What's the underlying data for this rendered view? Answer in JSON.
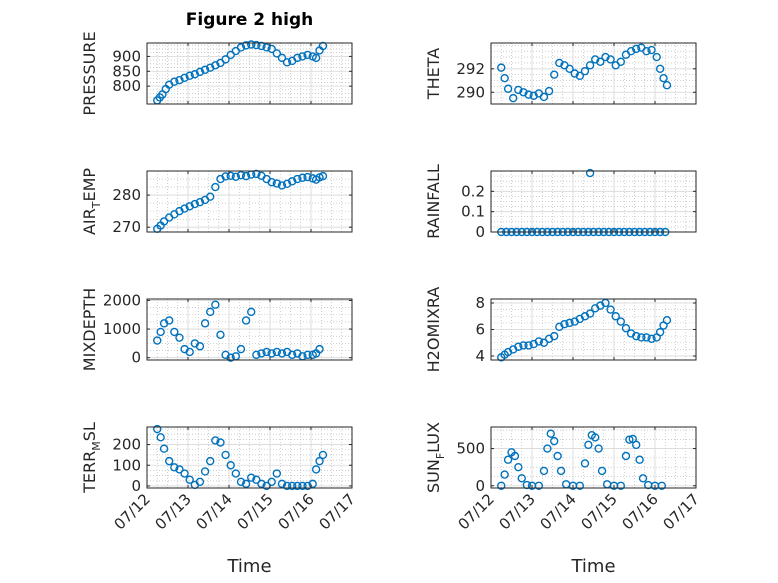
{
  "figure": {
    "title": "Figure 2 high",
    "xlabel": "Time",
    "colors": {
      "marker": "#0072BD",
      "axis": "#262626",
      "grid": "#b0b0b0"
    }
  },
  "chart_data": [
    {
      "type": "scatter",
      "name": "PRESSURE",
      "ylabel": "PRESSURE",
      "ylim": [
        740,
        945
      ],
      "yticks": [
        800,
        850,
        900
      ],
      "xlim": [
        "07/12",
        "07/17"
      ],
      "xticks": [],
      "x": [
        "07/12 06:00",
        "07/12 07:30",
        "07/12 09:00",
        "07/12 11:00",
        "07/12 13:00",
        "07/12 16:00",
        "07/12 19:00",
        "07/12 22:00",
        "07/13 01:00",
        "07/13 04:00",
        "07/13 07:00",
        "07/13 10:00",
        "07/13 13:00",
        "07/13 16:00",
        "07/13 19:00",
        "07/13 22:00",
        "07/14 01:00",
        "07/14 04:00",
        "07/14 07:00",
        "07/14 10:00",
        "07/14 13:00",
        "07/14 16:00",
        "07/14 19:00",
        "07/14 22:00",
        "07/15 01:00",
        "07/15 04:00",
        "07/15 07:00",
        "07/15 10:00",
        "07/15 13:00",
        "07/15 16:00",
        "07/15 19:00",
        "07/15 22:00",
        "07/16 01:00",
        "07/16 03:00",
        "07/16 05:00",
        "07/16 07:00"
      ],
      "y": [
        752,
        762,
        772,
        790,
        805,
        815,
        820,
        828,
        835,
        840,
        848,
        855,
        862,
        870,
        878,
        890,
        905,
        918,
        930,
        937,
        940,
        938,
        935,
        930,
        925,
        910,
        895,
        880,
        885,
        895,
        900,
        905,
        900,
        895,
        920,
        935
      ]
    },
    {
      "type": "scatter",
      "name": "THETA",
      "ylabel": "THETA",
      "ylim": [
        289,
        294.2
      ],
      "yticks": [
        290,
        292
      ],
      "xlim": [
        "07/12",
        "07/17"
      ],
      "xticks": [],
      "x": [
        "07/12 06:00",
        "07/12 08:00",
        "07/12 10:00",
        "07/12 13:00",
        "07/12 16:00",
        "07/12 19:00",
        "07/12 22:00",
        "07/13 01:00",
        "07/13 04:00",
        "07/13 07:00",
        "07/13 10:00",
        "07/13 13:00",
        "07/13 16:00",
        "07/13 19:00",
        "07/13 22:00",
        "07/14 01:00",
        "07/14 04:00",
        "07/14 07:00",
        "07/14 10:00",
        "07/14 13:00",
        "07/14 16:00",
        "07/14 19:00",
        "07/14 22:00",
        "07/15 01:00",
        "07/15 04:00",
        "07/15 07:00",
        "07/15 10:00",
        "07/15 13:00",
        "07/15 16:00",
        "07/15 19:00",
        "07/15 22:00",
        "07/16 01:00",
        "07/16 03:00",
        "07/16 05:00",
        "07/16 07:00"
      ],
      "y": [
        292.1,
        291.2,
        290.3,
        289.5,
        290.2,
        290.0,
        289.8,
        289.7,
        289.9,
        289.6,
        290.1,
        291.5,
        292.5,
        292.3,
        292.0,
        291.6,
        291.4,
        291.8,
        292.3,
        292.8,
        292.6,
        293.0,
        292.8,
        292.3,
        292.6,
        293.2,
        293.5,
        293.7,
        293.8,
        293.5,
        293.6,
        293.0,
        292.0,
        291.2,
        290.6
      ]
    },
    {
      "type": "scatter",
      "name": "AIR_TEMP",
      "ylabel": "AIR_TEMP",
      "ylim": [
        268.5,
        287.5
      ],
      "yticks": [
        270,
        280
      ],
      "xlim": [
        "07/12",
        "07/17"
      ],
      "xticks": [],
      "x": [
        "07/12 06:00",
        "07/12 08:00",
        "07/12 10:00",
        "07/12 13:00",
        "07/12 16:00",
        "07/12 19:00",
        "07/12 22:00",
        "07/13 01:00",
        "07/13 04:00",
        "07/13 07:00",
        "07/13 10:00",
        "07/13 13:00",
        "07/13 16:00",
        "07/13 19:00",
        "07/13 22:00",
        "07/14 01:00",
        "07/14 04:00",
        "07/14 07:00",
        "07/14 10:00",
        "07/14 13:00",
        "07/14 16:00",
        "07/14 19:00",
        "07/14 22:00",
        "07/15 01:00",
        "07/15 04:00",
        "07/15 07:00",
        "07/15 10:00",
        "07/15 13:00",
        "07/15 16:00",
        "07/15 19:00",
        "07/15 22:00",
        "07/16 01:00",
        "07/16 03:00",
        "07/16 05:00",
        "07/16 07:00"
      ],
      "y": [
        269.5,
        270.5,
        271.8,
        273.0,
        274.0,
        275.0,
        275.8,
        276.5,
        277.2,
        277.8,
        278.5,
        279.5,
        282.5,
        285.0,
        285.8,
        286.0,
        285.7,
        286.2,
        285.9,
        286.4,
        286.6,
        286.0,
        285.0,
        284.0,
        283.6,
        283.0,
        283.5,
        284.3,
        285.0,
        285.4,
        285.6,
        285.2,
        284.8,
        285.5,
        285.9
      ]
    },
    {
      "type": "scatter",
      "name": "RAINFALL",
      "ylabel": "RAINFALL",
      "ylim": [
        0,
        0.3
      ],
      "yticks": [
        0,
        0.1,
        0.2
      ],
      "ytick_labels": [
        "0",
        "0.1",
        "0.2"
      ],
      "xlim": [
        "07/12",
        "07/17"
      ],
      "xticks": [],
      "x": [
        "07/12 06:00",
        "07/12 09:00",
        "07/12 12:00",
        "07/12 15:00",
        "07/12 18:00",
        "07/12 21:00",
        "07/13 00:00",
        "07/13 03:00",
        "07/13 06:00",
        "07/13 09:00",
        "07/13 12:00",
        "07/13 15:00",
        "07/13 18:00",
        "07/13 21:00",
        "07/14 00:00",
        "07/14 03:00",
        "07/14 06:00",
        "07/14 09:00",
        "07/14 10:00",
        "07/14 12:00",
        "07/14 15:00",
        "07/14 18:00",
        "07/14 21:00",
        "07/15 00:00",
        "07/15 03:00",
        "07/15 06:00",
        "07/15 09:00",
        "07/15 12:00",
        "07/15 15:00",
        "07/15 18:00",
        "07/15 21:00",
        "07/16 00:00",
        "07/16 03:00",
        "07/16 06:00"
      ],
      "y": [
        0,
        0,
        0,
        0,
        0,
        0,
        0,
        0,
        0,
        0,
        0,
        0,
        0,
        0,
        0,
        0,
        0,
        0,
        0.29,
        0,
        0,
        0,
        0,
        0,
        0,
        0,
        0,
        0,
        0,
        0,
        0,
        0,
        0,
        0
      ]
    },
    {
      "type": "scatter",
      "name": "MIXDEPTH",
      "ylabel": "MIXDEPTH",
      "ylim": [
        -80,
        2050
      ],
      "yticks": [
        0,
        1000,
        2000
      ],
      "xlim": [
        "07/12",
        "07/17"
      ],
      "xticks": [],
      "x": [
        "07/12 06:00",
        "07/12 08:00",
        "07/12 10:00",
        "07/12 13:00",
        "07/12 16:00",
        "07/12 19:00",
        "07/12 22:00",
        "07/13 01:00",
        "07/13 04:00",
        "07/13 07:00",
        "07/13 10:00",
        "07/13 13:00",
        "07/13 16:00",
        "07/13 19:00",
        "07/13 22:00",
        "07/14 01:00",
        "07/14 04:00",
        "07/14 07:00",
        "07/14 10:00",
        "07/14 13:00",
        "07/14 16:00",
        "07/14 19:00",
        "07/14 22:00",
        "07/15 01:00",
        "07/15 04:00",
        "07/15 07:00",
        "07/15 10:00",
        "07/15 13:00",
        "07/15 16:00",
        "07/15 19:00",
        "07/15 22:00",
        "07/16 01:00",
        "07/16 03:00",
        "07/16 05:00"
      ],
      "y": [
        600,
        900,
        1200,
        1300,
        900,
        700,
        300,
        200,
        500,
        400,
        1200,
        1600,
        1850,
        800,
        100,
        0,
        50,
        300,
        1300,
        1600,
        100,
        150,
        200,
        150,
        200,
        150,
        200,
        100,
        150,
        50,
        100,
        100,
        150,
        300
      ]
    },
    {
      "type": "scatter",
      "name": "H2OMIXRA",
      "ylabel": "H2OMIXRA",
      "ylim": [
        3.7,
        8.3
      ],
      "yticks": [
        4,
        6,
        8
      ],
      "xlim": [
        "07/12",
        "07/17"
      ],
      "xticks": [],
      "x": [
        "07/12 06:00",
        "07/12 08:00",
        "07/12 10:00",
        "07/12 13:00",
        "07/12 16:00",
        "07/12 19:00",
        "07/12 22:00",
        "07/13 01:00",
        "07/13 04:00",
        "07/13 07:00",
        "07/13 10:00",
        "07/13 13:00",
        "07/13 16:00",
        "07/13 19:00",
        "07/13 22:00",
        "07/14 01:00",
        "07/14 04:00",
        "07/14 07:00",
        "07/14 10:00",
        "07/14 13:00",
        "07/14 16:00",
        "07/14 19:00",
        "07/14 22:00",
        "07/15 01:00",
        "07/15 04:00",
        "07/15 07:00",
        "07/15 10:00",
        "07/15 13:00",
        "07/15 16:00",
        "07/15 19:00",
        "07/15 22:00",
        "07/16 01:00",
        "07/16 03:00",
        "07/16 05:00",
        "07/16 07:00"
      ],
      "y": [
        3.9,
        4.1,
        4.3,
        4.5,
        4.7,
        4.8,
        4.8,
        4.9,
        5.1,
        5.0,
        5.3,
        5.5,
        6.2,
        6.4,
        6.5,
        6.6,
        6.8,
        7.0,
        7.2,
        7.6,
        7.8,
        8.0,
        7.5,
        7.0,
        6.6,
        6.1,
        5.7,
        5.5,
        5.4,
        5.4,
        5.3,
        5.4,
        5.8,
        6.3,
        6.7
      ]
    },
    {
      "type": "scatter",
      "name": "TERR_MSL",
      "ylabel": "TERR_MSL",
      "ylim": [
        -10,
        285
      ],
      "yticks": [
        0,
        100,
        200
      ],
      "xlim": [
        "07/12",
        "07/17"
      ],
      "xticks": [
        "07/12",
        "07/13",
        "07/14",
        "07/15",
        "07/16",
        "07/17"
      ],
      "x": [
        "07/12 06:00",
        "07/12 08:00",
        "07/12 10:00",
        "07/12 13:00",
        "07/12 16:00",
        "07/12 19:00",
        "07/12 22:00",
        "07/13 01:00",
        "07/13 04:00",
        "07/13 07:00",
        "07/13 10:00",
        "07/13 13:00",
        "07/13 16:00",
        "07/13 19:00",
        "07/13 22:00",
        "07/14 01:00",
        "07/14 04:00",
        "07/14 07:00",
        "07/14 10:00",
        "07/14 13:00",
        "07/14 16:00",
        "07/14 19:00",
        "07/14 22:00",
        "07/15 01:00",
        "07/15 04:00",
        "07/15 07:00",
        "07/15 10:00",
        "07/15 13:00",
        "07/15 16:00",
        "07/15 19:00",
        "07/15 22:00",
        "07/16 01:00",
        "07/16 03:00",
        "07/16 05:00",
        "07/16 07:00"
      ],
      "y": [
        275,
        235,
        180,
        120,
        90,
        80,
        60,
        30,
        5,
        20,
        70,
        120,
        220,
        210,
        150,
        100,
        60,
        20,
        10,
        40,
        30,
        10,
        0,
        20,
        60,
        10,
        0,
        0,
        0,
        0,
        0,
        10,
        80,
        120,
        150
      ]
    },
    {
      "type": "scatter",
      "name": "SUN_FLUX",
      "ylabel": "SUN_FLUX",
      "ylim": [
        -30,
        790
      ],
      "yticks": [
        0,
        500
      ],
      "xlim": [
        "07/12",
        "07/17"
      ],
      "xticks": [
        "07/12",
        "07/13",
        "07/14",
        "07/15",
        "07/16",
        "07/17"
      ],
      "x": [
        "07/12 06:00",
        "07/12 08:00",
        "07/12 10:00",
        "07/12 12:00",
        "07/12 14:00",
        "07/12 16:00",
        "07/12 18:00",
        "07/12 21:00",
        "07/13 00:00",
        "07/13 04:00",
        "07/13 07:00",
        "07/13 09:00",
        "07/13 11:00",
        "07/13 13:00",
        "07/13 15:00",
        "07/13 17:00",
        "07/13 20:00",
        "07/14 00:00",
        "07/14 04:00",
        "07/14 07:00",
        "07/14 09:00",
        "07/14 11:00",
        "07/14 13:00",
        "07/14 15:00",
        "07/14 17:00",
        "07/14 20:00",
        "07/15 00:00",
        "07/15 04:00",
        "07/15 07:00",
        "07/15 09:00",
        "07/15 11:00",
        "07/15 13:00",
        "07/15 15:00",
        "07/15 17:00",
        "07/15 20:00",
        "07/16 00:00",
        "07/16 04:00"
      ],
      "y": [
        0,
        150,
        350,
        450,
        400,
        250,
        100,
        10,
        0,
        0,
        200,
        500,
        700,
        600,
        400,
        200,
        20,
        0,
        0,
        300,
        550,
        680,
        650,
        500,
        200,
        20,
        0,
        0,
        400,
        620,
        630,
        550,
        350,
        100,
        10,
        0,
        0
      ]
    }
  ]
}
